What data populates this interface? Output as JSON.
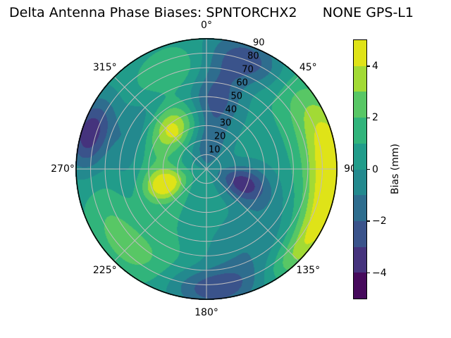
{
  "title": "Delta Antenna Phase Biases: SPNTORCHX2      NONE GPS-L1",
  "chart_data": {
    "type": "heatmap",
    "subtype": "polar-filled-contour",
    "title": "Delta Antenna Phase Biases: SPNTORCHX2      NONE GPS-L1",
    "angular_axis": "azimuth, 0° at top, clockwise",
    "radial_axis": "zenith angle, 0 at center to 90 at rim",
    "angular_ticks": [
      {
        "angle": 0,
        "label": "0°"
      },
      {
        "angle": 45,
        "label": "45°"
      },
      {
        "angle": 90,
        "label": "90"
      },
      {
        "angle": 135,
        "label": "135°"
      },
      {
        "angle": 180,
        "label": "180°"
      },
      {
        "angle": 225,
        "label": "225°"
      },
      {
        "angle": 270,
        "label": "270°"
      },
      {
        "angle": 315,
        "label": "315°"
      }
    ],
    "radial_ticks": [
      {
        "r": 10,
        "label": "10"
      },
      {
        "r": 20,
        "label": "20"
      },
      {
        "r": 30,
        "label": "30"
      },
      {
        "r": 40,
        "label": "40"
      },
      {
        "r": 50,
        "label": "50"
      },
      {
        "r": 60,
        "label": "60"
      },
      {
        "r": 70,
        "label": "70"
      },
      {
        "r": 80,
        "label": "80"
      },
      {
        "r": 90,
        "label": "90"
      }
    ],
    "radial_label_angle_deg": 22.5,
    "grid": {
      "ring_step": 10,
      "spoke_step_deg": 45,
      "color": "#bdbdbd",
      "outline_color": "#000000"
    },
    "colorbar": {
      "label": "Bias (mm)",
      "min": -5,
      "max": 5,
      "band_size": 1,
      "tick_values": [
        4,
        2,
        0,
        -2,
        -4
      ],
      "tick_labels": [
        "4",
        "2",
        "0",
        "−2",
        "−4"
      ],
      "band_colors_low_to_high": [
        "#460a5c",
        "#45337d",
        "#3a538b",
        "#2e6d8e",
        "#23898e",
        "#219c8a",
        "#31b47b",
        "#58c765",
        "#a2da35",
        "#dfe318"
      ]
    },
    "field": {
      "description": "Bias (mm) field approximated as sum of gaussian features: [azimuth_deg, zenith_deg, amplitude_mm, sigma_az_deg, sigma_zen_deg]",
      "base": 0.3,
      "bumps": [
        [
          90,
          88,
          3.2,
          20,
          10
        ],
        [
          78,
          79,
          2.3,
          34,
          15
        ],
        [
          118,
          86,
          1.6,
          16,
          9
        ],
        [
          112,
          27,
          -3.9,
          17,
          12
        ],
        [
          8,
          54,
          -3.3,
          14,
          24
        ],
        [
          24,
          80,
          -3.0,
          12,
          11
        ],
        [
          322,
          38,
          2.9,
          19,
          11
        ],
        [
          318,
          34,
          0.9,
          5,
          4
        ],
        [
          250,
          30,
          4.2,
          14,
          10
        ],
        [
          287,
          84,
          -4.1,
          12,
          10
        ],
        [
          176,
          82,
          -3.3,
          17,
          10
        ],
        [
          225,
          76,
          2.2,
          26,
          13
        ],
        [
          150,
          55,
          -1.7,
          30,
          16
        ],
        [
          345,
          70,
          1.7,
          22,
          14
        ],
        [
          292,
          36,
          1.2,
          40,
          12
        ],
        [
          135,
          86,
          1.5,
          14,
          8
        ],
        [
          2,
          14,
          -1.5,
          40,
          11
        ],
        [
          195,
          45,
          0.9,
          40,
          16
        ],
        [
          300,
          56,
          -1.7,
          26,
          9
        ]
      ]
    }
  }
}
